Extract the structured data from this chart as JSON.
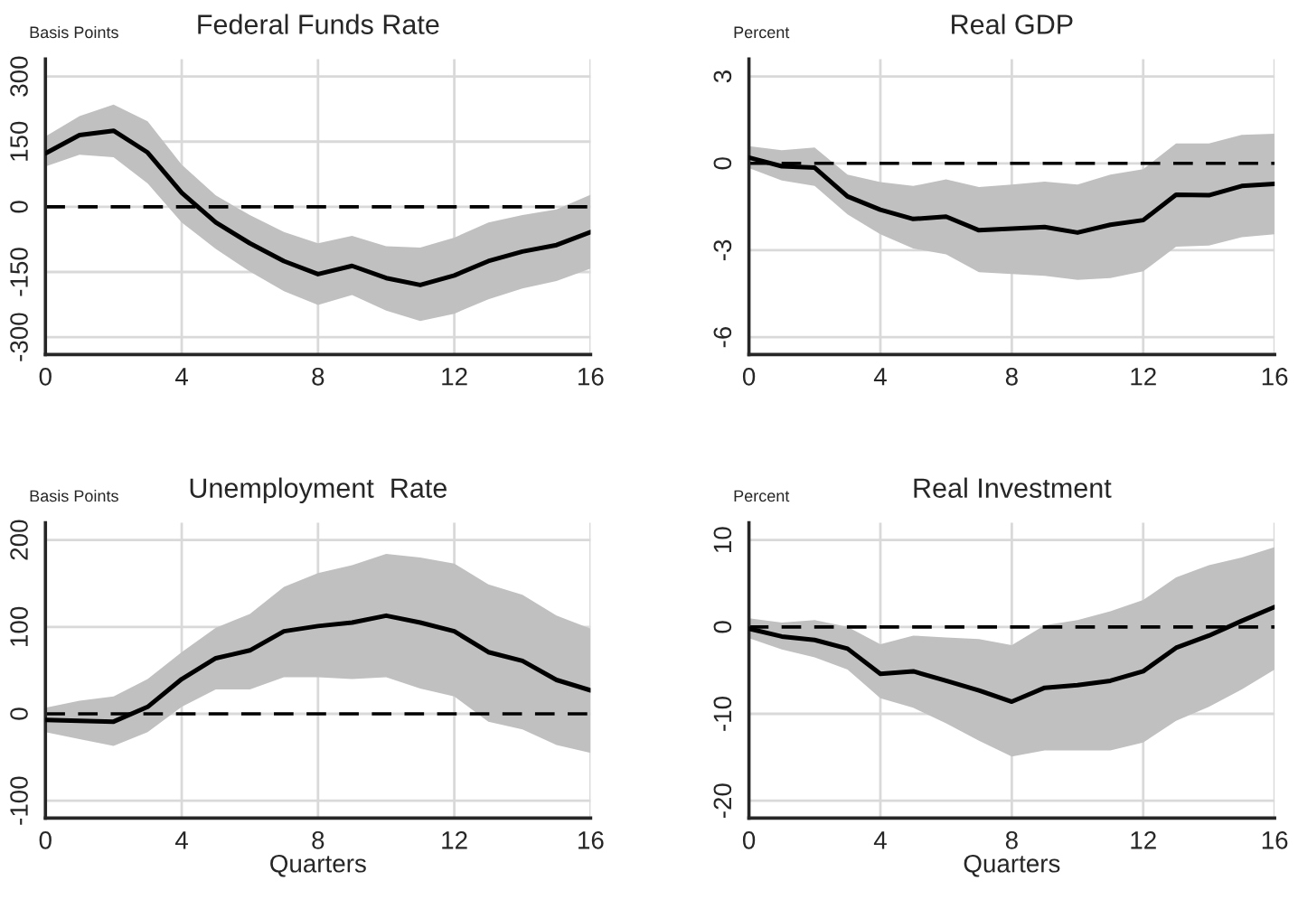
{
  "chart_data": [
    {
      "type": "line",
      "title": "Federal Funds Rate",
      "ylabel": "Basis Points",
      "x": [
        0,
        1,
        2,
        3,
        4,
        5,
        6,
        7,
        8,
        9,
        10,
        11,
        12,
        13,
        14,
        15,
        16
      ],
      "xlim": [
        0,
        16
      ],
      "xticks": [
        0,
        4,
        8,
        12,
        16
      ],
      "ylim": [
        -340,
        340
      ],
      "yticks": [
        -300,
        -150,
        0,
        150,
        300
      ],
      "grid": true,
      "series": [
        {
          "color": "#000000",
          "values": [
            123,
            165,
            175,
            125,
            32,
            -36,
            -84,
            -125,
            -155,
            -136,
            -164,
            -180,
            -158,
            -125,
            -103,
            -88,
            -58
          ],
          "lower": [
            93,
            120,
            114,
            54,
            -36,
            -97,
            -149,
            -194,
            -226,
            -203,
            -239,
            -263,
            -246,
            -213,
            -188,
            -171,
            -142
          ],
          "upper": [
            162,
            209,
            235,
            197,
            97,
            26,
            -19,
            -58,
            -84,
            -67,
            -91,
            -94,
            -71,
            -36,
            -19,
            -6,
            28
          ]
        }
      ],
      "ref_lines": [
        {
          "axis": "y",
          "value": 0,
          "color": "#000000",
          "line_style": "dashed"
        }
      ]
    },
    {
      "type": "line",
      "title": "Real GDP",
      "ylabel": "Percent",
      "x": [
        0,
        1,
        2,
        3,
        4,
        5,
        6,
        7,
        8,
        9,
        10,
        11,
        12,
        13,
        14,
        15,
        16
      ],
      "xlim": [
        0,
        16
      ],
      "xticks": [
        0,
        4,
        8,
        12,
        16
      ],
      "ylim": [
        -6.6,
        3.6
      ],
      "yticks": [
        -6,
        -3,
        0,
        3
      ],
      "grid": true,
      "series": [
        {
          "color": "#000000",
          "values": [
            0.2,
            -0.1,
            -0.15,
            -1.14,
            -1.6,
            -1.92,
            -1.84,
            -2.31,
            -2.25,
            -2.2,
            -2.39,
            -2.12,
            -1.96,
            -1.08,
            -1.1,
            -0.78,
            -0.71
          ],
          "lower": [
            -0.16,
            -0.59,
            -0.78,
            -1.76,
            -2.45,
            -2.94,
            -3.14,
            -3.76,
            -3.82,
            -3.88,
            -4.02,
            -3.96,
            -3.73,
            -2.88,
            -2.84,
            -2.55,
            -2.45
          ],
          "upper": [
            0.59,
            0.45,
            0.55,
            -0.39,
            -0.65,
            -0.78,
            -0.55,
            -0.82,
            -0.73,
            -0.63,
            -0.73,
            -0.39,
            -0.2,
            0.69,
            0.69,
            0.98,
            1.02
          ]
        }
      ],
      "ref_lines": [
        {
          "axis": "y",
          "value": 0,
          "color": "#000000",
          "line_style": "dashed"
        }
      ]
    },
    {
      "type": "line",
      "title": "Unemployment  Rate",
      "ylabel": "Basis Points",
      "xlabel": "Quarters",
      "x": [
        0,
        1,
        2,
        3,
        4,
        5,
        6,
        7,
        8,
        9,
        10,
        11,
        12,
        13,
        14,
        15,
        16
      ],
      "xlim": [
        0,
        16
      ],
      "xticks": [
        0,
        4,
        8,
        12,
        16
      ],
      "ylim": [
        -120,
        220
      ],
      "yticks": [
        -100,
        0,
        100,
        200
      ],
      "grid": true,
      "series": [
        {
          "color": "#000000",
          "values": [
            -7,
            -8,
            -9,
            8,
            40,
            64,
            73,
            95,
            101,
            105,
            113,
            105,
            95,
            71,
            61,
            39,
            27
          ],
          "lower": [
            -21,
            -29,
            -37,
            -21,
            8,
            28,
            28,
            42,
            42,
            40,
            42,
            29,
            20,
            -9,
            -18,
            -36,
            -45
          ],
          "upper": [
            7,
            15,
            20,
            40,
            71,
            99,
            115,
            146,
            162,
            171,
            184,
            180,
            173,
            149,
            137,
            113,
            98
          ]
        }
      ],
      "ref_lines": [
        {
          "axis": "y",
          "value": 0,
          "color": "#000000",
          "line_style": "dashed"
        }
      ]
    },
    {
      "type": "line",
      "title": "Real Investment",
      "ylabel": "Percent",
      "xlabel": "Quarters",
      "x": [
        0,
        1,
        2,
        3,
        4,
        5,
        6,
        7,
        8,
        9,
        10,
        11,
        12,
        13,
        14,
        15,
        16
      ],
      "xlim": [
        0,
        16
      ],
      "xticks": [
        0,
        4,
        8,
        12,
        16
      ],
      "ylim": [
        -22,
        12
      ],
      "yticks": [
        -20,
        -10,
        0,
        10
      ],
      "grid": true,
      "series": [
        {
          "color": "#000000",
          "values": [
            -0.2,
            -1.1,
            -1.5,
            -2.5,
            -5.4,
            -5.1,
            -6.2,
            -7.3,
            -8.6,
            -7.0,
            -6.7,
            -6.2,
            -5.1,
            -2.4,
            -1.0,
            0.7,
            2.3
          ],
          "lower": [
            -1.3,
            -2.6,
            -3.5,
            -4.9,
            -8.2,
            -9.3,
            -11.1,
            -13.1,
            -14.9,
            -14.2,
            -14.2,
            -14.2,
            -13.3,
            -10.8,
            -9.2,
            -7.2,
            -4.9
          ],
          "upper": [
            1.0,
            0.5,
            0.8,
            0,
            -2.0,
            -1.0,
            -1.2,
            -1.4,
            -2.1,
            0.2,
            0.8,
            1.8,
            3.1,
            5.7,
            7.1,
            8.0,
            9.2
          ]
        }
      ],
      "ref_lines": [
        {
          "axis": "y",
          "value": 0,
          "color": "#000000",
          "line_style": "dashed"
        }
      ]
    }
  ]
}
